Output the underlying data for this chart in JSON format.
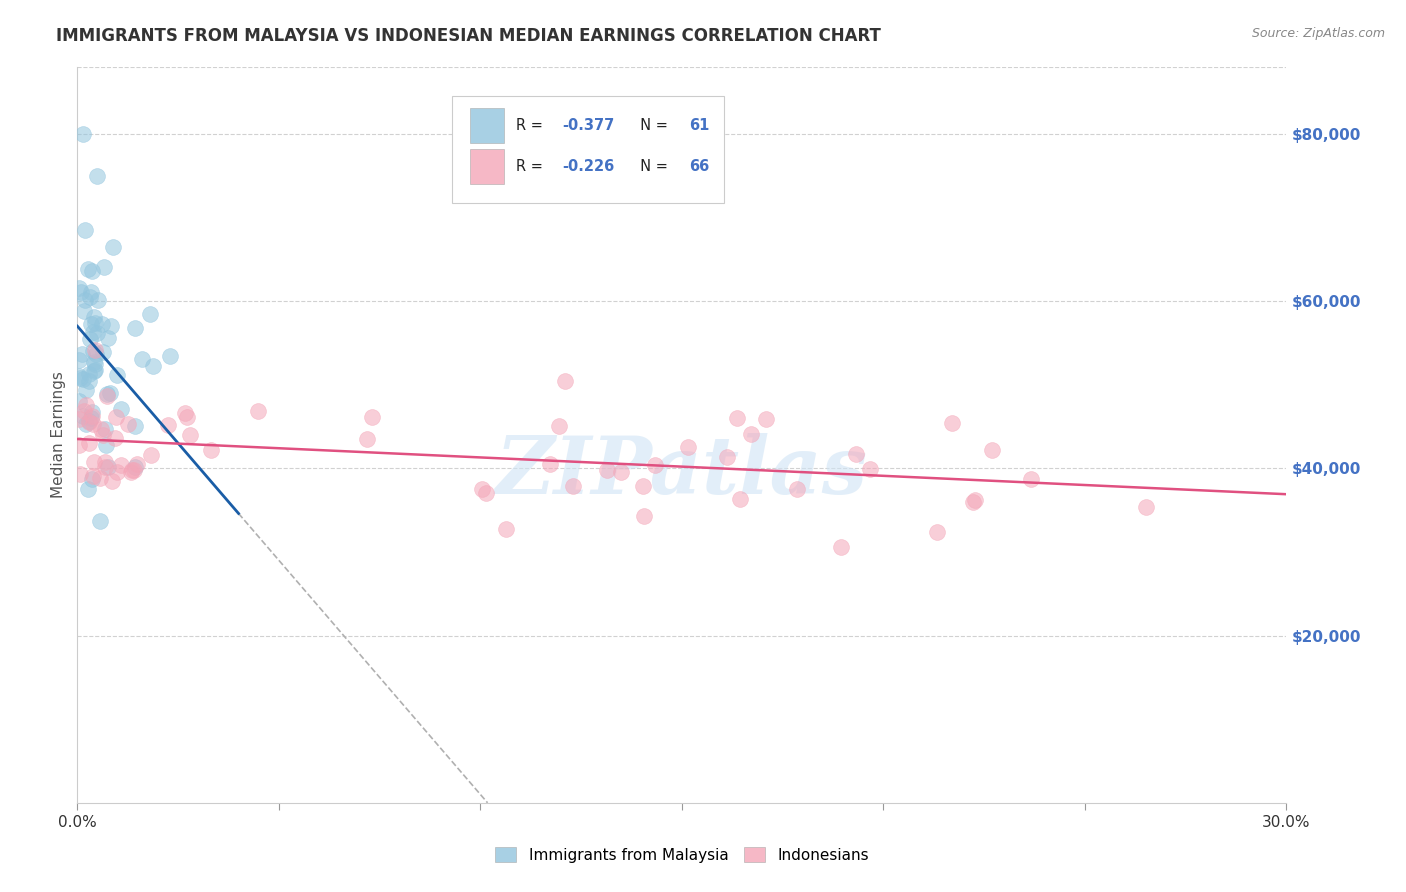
{
  "title": "IMMIGRANTS FROM MALAYSIA VS INDONESIAN MEDIAN EARNINGS CORRELATION CHART",
  "source": "Source: ZipAtlas.com",
  "ylabel": "Median Earnings",
  "y_ticks": [
    20000,
    40000,
    60000,
    80000
  ],
  "y_tick_labels": [
    "$20,000",
    "$40,000",
    "$60,000",
    "$80,000"
  ],
  "watermark": "ZIPatlas",
  "legend1_r": "-0.377",
  "legend1_n": "61",
  "legend2_r": "-0.226",
  "legend2_n": "66",
  "legend1_label": "Immigrants from Malaysia",
  "legend2_label": "Indonesians",
  "blue_color": "#92c5de",
  "pink_color": "#f4a6b8",
  "blue_line_color": "#1a5da6",
  "pink_line_color": "#e05080",
  "blue_slope": -560000,
  "blue_intercept": 57000,
  "pink_slope": -22000,
  "pink_intercept": 43500,
  "xlim": [
    0,
    0.3
  ],
  "ylim": [
    0,
    88000
  ],
  "background_color": "#ffffff",
  "grid_color": "#cccccc",
  "title_color": "#333333",
  "source_color": "#888888",
  "right_tick_color": "#4472c4"
}
